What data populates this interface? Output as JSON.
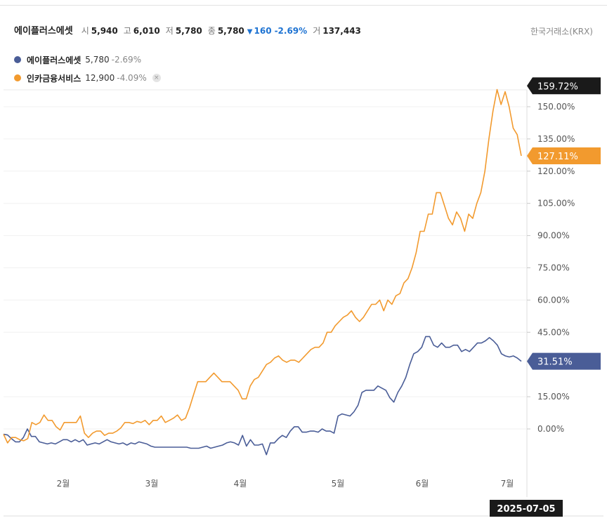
{
  "header": {
    "name": "에이플러스에셋",
    "open_label": "시",
    "open": "5,940",
    "high_label": "고",
    "high": "6,010",
    "low_label": "저",
    "low": "5,780",
    "close_label": "종",
    "close": "5,780",
    "change_arrow": "▼",
    "change": "160",
    "change_pct": "-2.69%",
    "volume_label": "거",
    "volume": "137,443",
    "exchange": "한국거래소(KRX)"
  },
  "legend": [
    {
      "name": "에이플러스에셋",
      "price": "5,780",
      "pct": "-2.69%",
      "color": "#4a5d97",
      "removable": false
    },
    {
      "name": "인카금융서비스",
      "price": "12,900",
      "pct": "-4.09%",
      "color": "#f29a2e",
      "removable": true,
      "remove_icon": "×"
    }
  ],
  "chart_data": {
    "type": "line",
    "x_tick_labels": [
      "2월",
      "3월",
      "4월",
      "5월",
      "6월",
      "7월"
    ],
    "y_tick_labels": [
      "0.00%",
      "15.00%",
      "45.00%",
      "60.00%",
      "75.00%",
      "90.00%",
      "105.00%",
      "120.00%",
      "135.00%",
      "150.00%"
    ],
    "y_unit": "%",
    "ylim": [
      -20,
      165
    ],
    "grid": true,
    "date_label": "2025-07-05",
    "series": [
      {
        "name": "에이플러스에셋",
        "color": "#4a5d97",
        "last_label": "31.51%",
        "values": [
          -2.5,
          -2.8,
          -4.5,
          -6,
          -6,
          -4,
          0,
          -3.5,
          -3.5,
          -6,
          -6.5,
          -7,
          -6.5,
          -7,
          -6,
          -5,
          -5,
          -6,
          -5,
          -6,
          -5,
          -7.5,
          -7,
          -6.5,
          -7,
          -6,
          -5,
          -6,
          -6.5,
          -7,
          -6.5,
          -7.5,
          -6.5,
          -7,
          -6,
          -6.5,
          -7,
          -8,
          -8.5,
          -8.5,
          -8.5,
          -8.5,
          -8.5,
          -8.5,
          -8.5,
          -8.5,
          -8.5,
          -9,
          -9,
          -9,
          -8.5,
          -8,
          -9,
          -8.5,
          -8,
          -7.5,
          -6.5,
          -6,
          -6.5,
          -7.5,
          -3,
          -8,
          -5,
          -7.5,
          -7.5,
          -7,
          -12,
          -6.5,
          -6.5,
          -4.5,
          -3,
          -4,
          -1,
          1,
          1,
          -1.5,
          -1.5,
          -1,
          -1,
          -1.5,
          0,
          -1,
          -1,
          -2,
          6,
          7,
          6.5,
          6,
          8,
          11,
          17,
          18,
          18,
          18,
          20,
          19,
          18,
          14.5,
          12.5,
          17,
          20,
          24,
          30,
          35,
          36,
          38,
          43,
          43,
          39,
          38,
          40,
          38,
          38,
          39,
          39,
          36,
          37,
          36,
          38,
          40,
          40,
          41,
          42.5,
          41,
          39,
          35,
          34,
          33.5,
          34,
          33,
          31.5
        ]
      },
      {
        "name": "인카금융서비스",
        "color": "#f29a2e",
        "last_label": "127.11%",
        "values": [
          -2.5,
          -6.5,
          -4,
          -4,
          -5,
          -5.5,
          -4.5,
          3,
          2,
          3,
          6.5,
          4,
          4,
          1,
          -0.5,
          3,
          3,
          3,
          3,
          6,
          -2,
          -4,
          -2,
          -1,
          -1,
          -3,
          -2,
          -2,
          -1,
          0.5,
          3,
          3,
          2.5,
          3.5,
          3,
          4,
          2,
          4,
          4,
          6,
          3,
          4,
          5,
          6.5,
          4,
          5,
          10,
          16,
          22,
          22,
          22,
          24,
          26,
          24,
          22,
          22,
          22,
          20,
          18,
          14,
          14,
          20,
          23,
          24,
          27,
          30,
          31,
          33,
          34,
          32,
          31,
          32,
          32,
          31,
          33,
          35,
          37,
          38,
          38,
          40,
          45,
          45,
          48,
          50,
          52,
          53,
          55,
          52,
          50,
          52,
          55,
          58,
          58,
          60,
          55,
          60,
          58,
          62,
          63,
          68,
          70,
          75,
          82,
          92,
          92,
          100,
          100,
          110,
          110,
          104,
          98,
          95,
          101,
          98,
          92,
          100,
          98,
          105,
          110,
          120,
          135,
          148,
          158,
          151,
          157,
          150,
          140,
          137,
          127.11
        ]
      }
    ]
  }
}
